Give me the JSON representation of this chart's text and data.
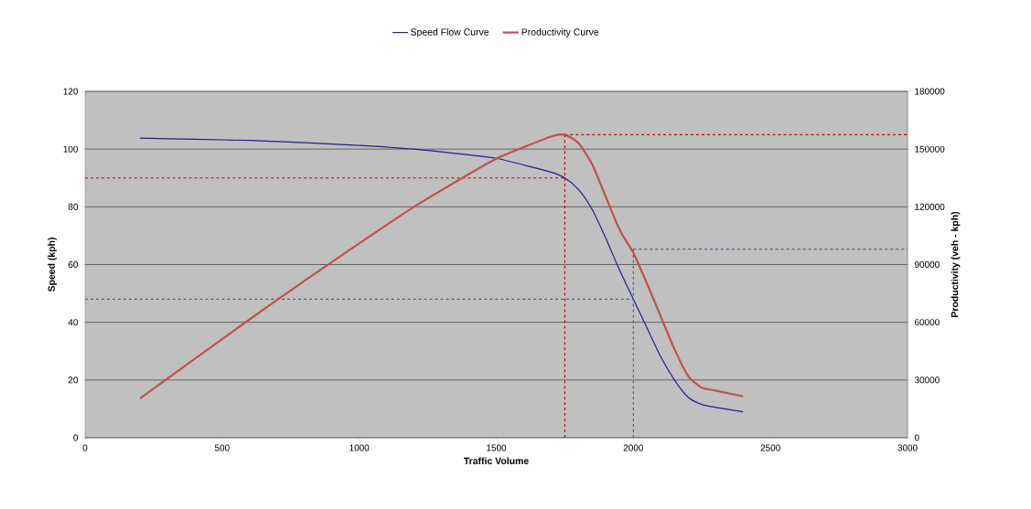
{
  "chart_data": {
    "type": "line",
    "xlabel": "Traffic Volume",
    "ylabel": "Speed (kph)",
    "y2label": "Productivity (veh - kph)",
    "xlim": [
      0,
      3000
    ],
    "xticks": [
      0,
      500,
      1000,
      1500,
      2000,
      2500,
      3000
    ],
    "ylim": [
      0,
      120
    ],
    "yticks": [
      0,
      20,
      40,
      60,
      80,
      100,
      120
    ],
    "y2lim": [
      0,
      180000
    ],
    "y2ticks": [
      0,
      30000,
      60000,
      90000,
      120000,
      150000,
      180000
    ],
    "grid": "y",
    "legend": "top",
    "marker": "none",
    "series": [
      {
        "name": "Speed Flow Curve",
        "color": "#1f1f8c",
        "x": [
          200,
          400,
          600,
          800,
          1000,
          1200,
          1400,
          1500,
          1600,
          1700,
          1750,
          1800,
          1850,
          1900,
          1950,
          2000,
          2050,
          2100,
          2150,
          2200,
          2250,
          2300,
          2400
        ],
        "values": [
          103.8,
          103.4,
          103,
          102.2,
          101.3,
          100,
          98,
          96.8,
          94.5,
          92,
          90,
          86,
          79,
          69,
          58,
          48,
          38,
          28,
          20,
          14,
          11.5,
          10.5,
          9
        ]
      },
      {
        "name": "Productivity Curve",
        "color": "#c0504d",
        "axis": "y2",
        "x": [
          200,
          400,
          600,
          800,
          1000,
          1200,
          1400,
          1500,
          1600,
          1700,
          1750,
          1800,
          1850,
          1900,
          1950,
          2000,
          2050,
          2100,
          2150,
          2200,
          2250,
          2300,
          2400
        ],
        "values": [
          20400,
          41000,
          61500,
          81500,
          101000,
          120000,
          137000,
          145000,
          151000,
          156500,
          157500,
          153000,
          142000,
          125000,
          108000,
          96000,
          80000,
          63000,
          46000,
          32000,
          26000,
          24500,
          21500
        ]
      }
    ],
    "ref_lines": [
      {
        "axis": "y",
        "value": 90,
        "color": "#c00000",
        "line_style": "dashed"
      },
      {
        "axis": "x",
        "value": 1750,
        "color": "#c00000",
        "line_style": "dashed"
      },
      {
        "axis": "y2",
        "value": 157500,
        "color": "#c00000",
        "line_style": "dashed"
      },
      {
        "axis": "y",
        "value": 48,
        "color": "#3e6496",
        "line_style": "dashed"
      },
      {
        "axis": "x",
        "value": 2000,
        "color": "#3e6496",
        "line_style": "dashed"
      },
      {
        "axis": "y2",
        "value": 98000,
        "color": "#3e6496",
        "line_style": "dashed"
      }
    ]
  }
}
